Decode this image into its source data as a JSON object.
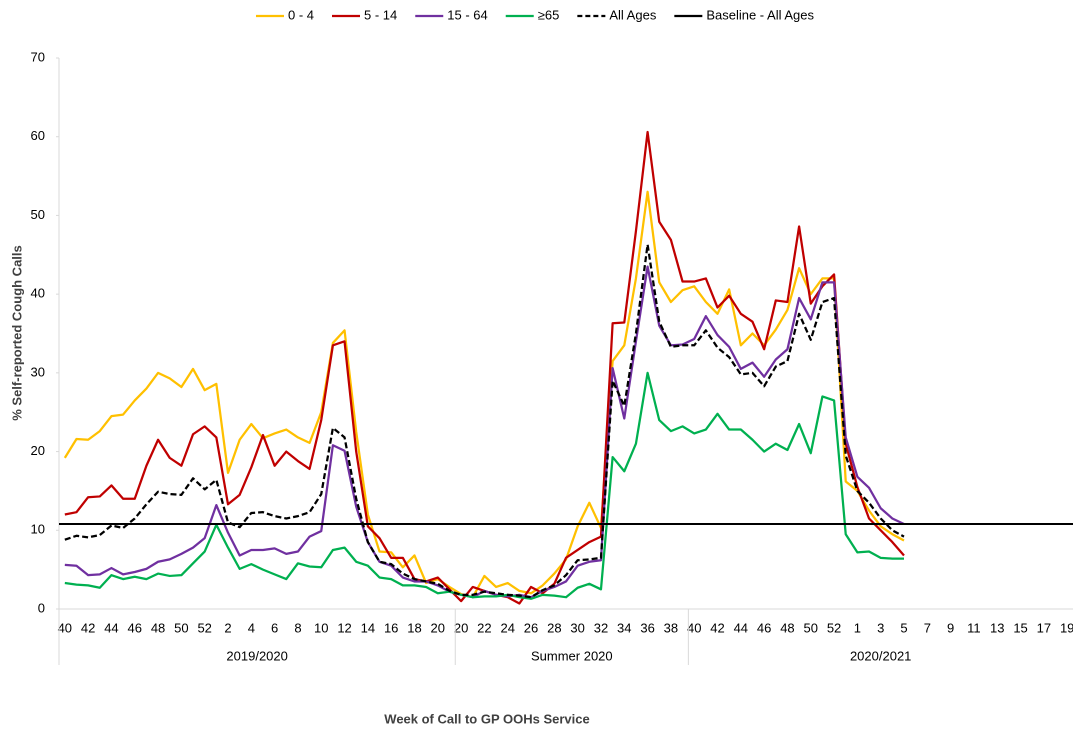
{
  "chart_data": {
    "type": "line",
    "x_label": "Week of Call to GP OOHs Service",
    "y_label": "% Self-reported Cough Calls",
    "ylim": [
      0,
      70
    ],
    "yticks": [
      0,
      10,
      20,
      30,
      40,
      50,
      60,
      70
    ],
    "categories": [
      "40",
      null,
      "42",
      null,
      "44",
      null,
      "46",
      null,
      "48",
      null,
      "50",
      null,
      "52",
      null,
      "2",
      null,
      "4",
      null,
      "6",
      null,
      "8",
      null,
      "10",
      null,
      "12",
      null,
      "14",
      null,
      "16",
      null,
      "18",
      null,
      "20",
      null,
      "20",
      null,
      "22",
      null,
      "24",
      null,
      "26",
      null,
      "28",
      null,
      "30",
      null,
      "32",
      null,
      "34",
      null,
      "36",
      null,
      "38",
      null,
      "40",
      null,
      "42",
      null,
      "44",
      null,
      "46",
      null,
      "48",
      null,
      "50",
      null,
      "52",
      null,
      "1",
      null,
      "3",
      null,
      "5",
      null,
      "7",
      null,
      "9",
      null,
      "11",
      null,
      "13",
      null,
      "15",
      null,
      "17",
      null,
      "19"
    ],
    "category_groups": [
      {
        "name": "2019/2020",
        "count": 34
      },
      {
        "name": "Summer 2020",
        "count": 20
      },
      {
        "name": "2020/2021",
        "count": 33
      }
    ],
    "series": [
      {
        "name": "0 - 4",
        "color": "#ffc000",
        "values": [
          19.2,
          21.6,
          21.5,
          22.6,
          24.5,
          24.7,
          26.5,
          28,
          30,
          29.3,
          28.2,
          30.5,
          27.8,
          28.6,
          17.3,
          21.5,
          23.5,
          21.7,
          22.3,
          22.8,
          21.8,
          21.1,
          25,
          33.8,
          35.4,
          22.5,
          12,
          7.3,
          7.2,
          5.3,
          6.8,
          3.3,
          3.8,
          2.8,
          1.9,
          1.5,
          4.2,
          2.8,
          3.3,
          2.3,
          2,
          3,
          4.5,
          6.3,
          10.5,
          13.5,
          10.3,
          31.5,
          33.5,
          42,
          53,
          41.5,
          39,
          40.5,
          41,
          39,
          37.5,
          40.6,
          33.5,
          35,
          33.5,
          35.5,
          38,
          43.3,
          40,
          42,
          42,
          16.2,
          15,
          12.5,
          10.5,
          9.5,
          8.7,
          null,
          null,
          null,
          null,
          null,
          null,
          null,
          null,
          null,
          null,
          null,
          null,
          null,
          null
        ]
      },
      {
        "name": "5 - 14",
        "color": "#c00000",
        "values": [
          12,
          12.3,
          14.2,
          14.3,
          15.7,
          14,
          14,
          18.2,
          21.5,
          19.2,
          18.2,
          22.2,
          23.2,
          21.8,
          13.3,
          14.5,
          18,
          22.1,
          18.2,
          20,
          18.8,
          17.8,
          24,
          33.5,
          34,
          20,
          10.5,
          9,
          6.5,
          6.5,
          3.8,
          3.5,
          4,
          2.5,
          1,
          2.8,
          2.3,
          1.8,
          1.5,
          0.7,
          2.8,
          2,
          3.2,
          6.5,
          7.5,
          8.5,
          9.2,
          36.3,
          36.4,
          48,
          60.6,
          49.2,
          46.9,
          41.6,
          41.6,
          42,
          38.3,
          39.8,
          37.5,
          36.5,
          33,
          39.2,
          39,
          48.6,
          38.8,
          41,
          42.5,
          21,
          15.5,
          11.5,
          10,
          8.5,
          6.8,
          null,
          null,
          null,
          null,
          null,
          null,
          null,
          null,
          null,
          null,
          null,
          null,
          null,
          null
        ]
      },
      {
        "name": "15 - 64",
        "color": "#7030a0",
        "values": [
          5.6,
          5.5,
          4.3,
          4.4,
          5.2,
          4.4,
          4.7,
          5.1,
          6,
          6.3,
          7,
          7.8,
          9,
          13.2,
          9.7,
          6.8,
          7.5,
          7.5,
          7.7,
          7,
          7.3,
          9.2,
          9.9,
          20.8,
          20.1,
          13,
          8.5,
          6,
          5.5,
          4,
          3.5,
          3.5,
          3,
          2.2,
          1.8,
          1.5,
          2.3,
          1.8,
          1.6,
          1.8,
          1.5,
          2.3,
          2.8,
          3.5,
          5.5,
          6,
          6.2,
          30.6,
          24.2,
          34,
          43.5,
          36,
          33.5,
          33.6,
          34.3,
          37.2,
          34.8,
          33.3,
          30.5,
          31.3,
          29.5,
          31.7,
          33,
          39.5,
          36.8,
          41.5,
          41.5,
          21.8,
          16.8,
          15.4,
          12.8,
          11.5,
          10.8,
          null,
          null,
          null,
          null,
          null,
          null,
          null,
          null,
          null,
          null,
          null,
          null,
          null,
          null
        ]
      },
      {
        "name": "≥65",
        "color": "#00b050",
        "values": [
          3.3,
          3.1,
          3,
          2.7,
          4.3,
          3.8,
          4.1,
          3.8,
          4.5,
          4.2,
          4.3,
          5.8,
          7.3,
          10.7,
          7.8,
          5.1,
          5.7,
          5,
          4.4,
          3.8,
          5.8,
          5.4,
          5.3,
          7.5,
          7.8,
          6,
          5.5,
          4,
          3.8,
          3,
          3,
          2.8,
          2,
          2.2,
          1.8,
          1.5,
          1.6,
          1.6,
          1.8,
          1.5,
          1.3,
          1.8,
          1.7,
          1.5,
          2.7,
          3.2,
          2.5,
          19.3,
          17.5,
          21,
          30,
          24,
          22.6,
          23.2,
          22.3,
          22.8,
          24.8,
          22.8,
          22.8,
          21.5,
          20,
          21,
          20.2,
          23.5,
          19.8,
          27,
          26.5,
          9.5,
          7.2,
          7.3,
          6.5,
          6.4,
          6.4,
          null,
          null,
          null,
          null,
          null,
          null,
          null,
          null,
          null,
          null,
          null,
          null,
          null,
          null
        ]
      },
      {
        "name": "All Ages",
        "color": "#000000",
        "dashed": true,
        "values": [
          8.8,
          9.3,
          9.1,
          9.4,
          10.6,
          10.3,
          11.5,
          13.3,
          14.9,
          14.6,
          14.5,
          16.6,
          15.2,
          16.4,
          11,
          10.4,
          12.2,
          12.3,
          11.8,
          11.5,
          11.8,
          12.3,
          14.6,
          23,
          21.8,
          14,
          8.5,
          6,
          5.7,
          4.5,
          3.8,
          3.5,
          3.2,
          2.3,
          1.8,
          1.8,
          2.2,
          2,
          1.8,
          1.7,
          1.5,
          2.4,
          3,
          4.3,
          6.2,
          6.3,
          6.5,
          29,
          25.8,
          35,
          46.3,
          36.5,
          33.3,
          33.5,
          33.5,
          35.4,
          33.2,
          32,
          29.8,
          30,
          28.3,
          30.8,
          31.5,
          37.5,
          34.2,
          39,
          39.5,
          19.5,
          15,
          13.5,
          11.5,
          10,
          9.2,
          null,
          null,
          null,
          null,
          null,
          null,
          null,
          null,
          null,
          null,
          null,
          null,
          null,
          null
        ]
      },
      {
        "name": "Baseline - All Ages",
        "color": "#000000",
        "value": 10.8
      }
    ]
  }
}
